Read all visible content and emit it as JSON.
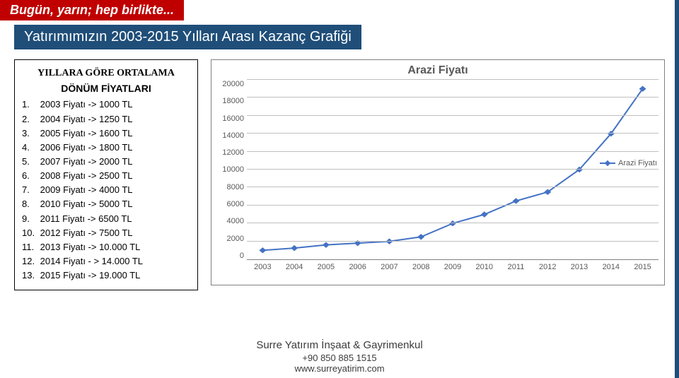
{
  "header": {
    "tagline": "Bugün, yarın; hep birlikte..."
  },
  "subtitle": "Yatırımımızın 2003-2015 Yılları Arası Kazanç Grafiği",
  "price_list": {
    "heading1": "YILLARA GÖRE ORTALAMA",
    "heading2": "DÖNÜM FİYATLARI",
    "rows": [
      {
        "n": "1.",
        "t": "2003 Fiyatı -> 1000  TL"
      },
      {
        "n": "2.",
        "t": "2004 Fiyatı -> 1250 TL"
      },
      {
        "n": "3.",
        "t": "2005 Fiyatı -> 1600 TL"
      },
      {
        "n": "4.",
        "t": "2006 Fiyatı -> 1800 TL"
      },
      {
        "n": "5.",
        "t": "2007 Fiyatı -> 2000 TL"
      },
      {
        "n": "6.",
        "t": "2008 Fiyatı -> 2500 TL"
      },
      {
        "n": "7.",
        "t": "2009 Fiyatı -> 4000 TL"
      },
      {
        "n": "8.",
        "t": "2010 Fiyatı -> 5000 TL"
      },
      {
        "n": "9.",
        "t": "2011 Fiyatı -> 6500 TL"
      },
      {
        "n": "10.",
        "t": "2012 Fiyatı -> 7500 TL"
      },
      {
        "n": "11.",
        "t": "2013 Fiyatı -> 10.000 TL"
      },
      {
        "n": "12.",
        "t": "2014 Fiyatı - > 14.000 TL"
      },
      {
        "n": "13.",
        "t": "2015 Fiyatı -> 19.000 TL"
      }
    ]
  },
  "chart": {
    "type": "line",
    "title": "Arazi Fiyatı",
    "series_name": "Arazi Fiyatı",
    "series_color": "#4472c4",
    "line_width": 2,
    "marker_style": "diamond",
    "marker_size": 6,
    "background_color": "#ffffff",
    "grid_color": "#bfbfbf",
    "axis_color": "#808080",
    "tick_fontsize": 11,
    "tick_color": "#595959",
    "title_fontsize": 16,
    "title_color": "#595959",
    "ylim": [
      0,
      20000
    ],
    "ytick_step": 2000,
    "y_ticks": [
      "20000",
      "18000",
      "16000",
      "14000",
      "12000",
      "10000",
      "8000",
      "6000",
      "4000",
      "2000",
      "0"
    ],
    "x_labels": [
      "2003",
      "2004",
      "2005",
      "2006",
      "2007",
      "2008",
      "2009",
      "2010",
      "2011",
      "2012",
      "2013",
      "2014",
      "2015"
    ],
    "values": [
      1000,
      1250,
      1600,
      1800,
      2000,
      2500,
      4000,
      5000,
      6500,
      7500,
      10000,
      14000,
      19000
    ]
  },
  "footer": {
    "company": "Surre Yatırım İnşaat & Gayrimenkul",
    "phone": "+90 850 885 1515",
    "url": "www.surreyatirim.com"
  },
  "colors": {
    "header_bg": "#c00000",
    "subtitle_bg": "#1f4e79",
    "border_accent": "#1f4e79"
  }
}
